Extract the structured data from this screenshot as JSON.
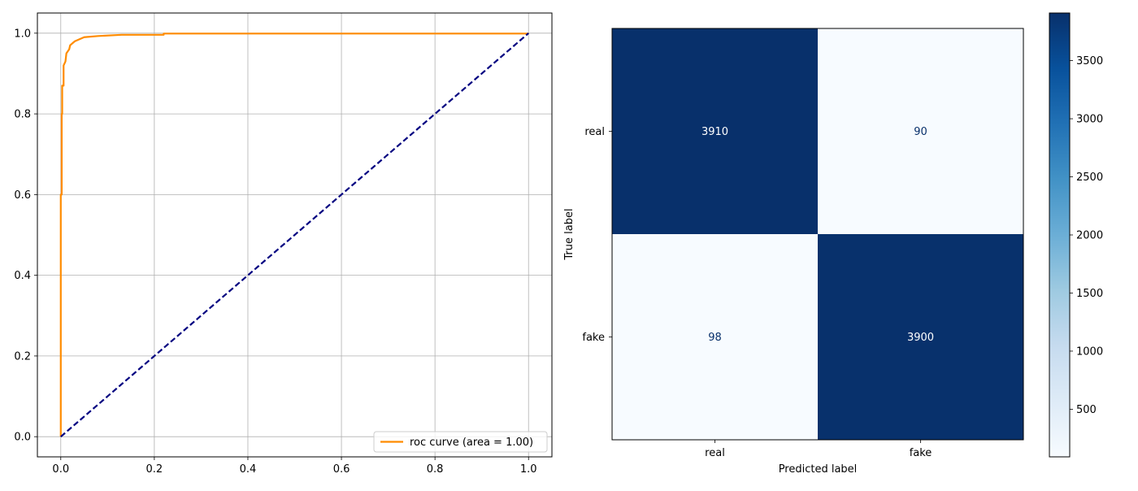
{
  "chart_data": [
    {
      "type": "line",
      "title": "",
      "xlabel": "",
      "ylabel": "",
      "xlim": [
        -0.05,
        1.05
      ],
      "ylim": [
        -0.05,
        1.05
      ],
      "xticks": [
        "0.0",
        "0.2",
        "0.4",
        "0.6",
        "0.8",
        "1.0"
      ],
      "yticks": [
        "0.0",
        "0.2",
        "0.4",
        "0.6",
        "0.8",
        "1.0"
      ],
      "grid": true,
      "legend_position": "lower-right",
      "series": [
        {
          "name": "roc curve (area = 1.00)",
          "color": "#ff8c00",
          "style": "solid",
          "points": [
            [
              0.0,
              0.0
            ],
            [
              0.0,
              0.6
            ],
            [
              0.002,
              0.6
            ],
            [
              0.002,
              0.8
            ],
            [
              0.003,
              0.8
            ],
            [
              0.003,
              0.87
            ],
            [
              0.006,
              0.87
            ],
            [
              0.006,
              0.92
            ],
            [
              0.01,
              0.93
            ],
            [
              0.012,
              0.95
            ],
            [
              0.018,
              0.96
            ],
            [
              0.02,
              0.97
            ],
            [
              0.03,
              0.98
            ],
            [
              0.04,
              0.985
            ],
            [
              0.05,
              0.99
            ],
            [
              0.08,
              0.993
            ],
            [
              0.13,
              0.996
            ],
            [
              0.22,
              0.996
            ],
            [
              0.22,
              0.999
            ],
            [
              1.0,
              0.999
            ]
          ]
        },
        {
          "name": "",
          "color": "#000080",
          "style": "dashed",
          "points": [
            [
              0.0,
              0.0
            ],
            [
              1.0,
              1.0
            ]
          ]
        }
      ]
    },
    {
      "type": "heatmap",
      "title": "",
      "xlabel": "Predicted label",
      "ylabel": "True label",
      "x_categories": [
        "real",
        "fake"
      ],
      "y_categories": [
        "real",
        "fake"
      ],
      "values": [
        [
          3910,
          90
        ],
        [
          98,
          3900
        ]
      ],
      "value_labels": [
        [
          "3910",
          "90"
        ],
        [
          "98",
          "3900"
        ]
      ],
      "colormap": "Blues",
      "colormap_colors": [
        "#f7fbff",
        "#deebf7",
        "#c6dbef",
        "#9ecae1",
        "#6baed6",
        "#4292c6",
        "#2171b5",
        "#08519c",
        "#08306b"
      ],
      "colorbar_range": [
        90,
        3910
      ],
      "colorbar_ticks": [
        500,
        1000,
        1500,
        2000,
        2500,
        3000,
        3500
      ]
    }
  ]
}
